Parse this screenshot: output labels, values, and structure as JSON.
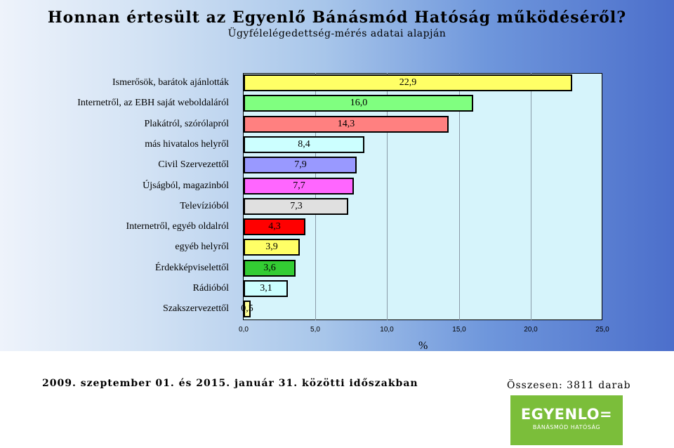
{
  "header": {
    "title": "Honnan értesült az Egyenlő Bánásmód Hatóság működéséről?",
    "subtitle": "Ügyfélelégedettség-mérés adatai alapján"
  },
  "chart_data": {
    "type": "bar",
    "orientation": "horizontal",
    "title": "Honnan értesült az Egyenlő Bánásmód Hatóság működéséről?",
    "subtitle": "Ügyfélelégedettség-mérés adatai alapján",
    "xlabel": "%",
    "ylabel": "",
    "xlim": [
      0,
      25
    ],
    "x_ticks": [
      "0,0",
      "5,0",
      "10,0",
      "15,0",
      "20,0",
      "25,0"
    ],
    "grid": true,
    "categories": [
      "Ismerősök, barátok ajánlották",
      "Internetről, az EBH saját weboldaláról",
      "Plakátról, szórólapról",
      "más hivatalos helyről",
      "Civil Szervezettől",
      "Újságból, magazinból",
      "Televízióból",
      "Internetről, egyéb oldalról",
      "egyéb helyről",
      "Érdekképviselettől",
      "Rádióból",
      "Szakszervezettől"
    ],
    "values": [
      22.9,
      16.0,
      14.3,
      8.4,
      7.9,
      7.7,
      7.3,
      4.3,
      3.9,
      3.6,
      3.1,
      0.5
    ],
    "value_labels": [
      "22,9",
      "16,0",
      "14,3",
      "8,4",
      "7,9",
      "7,7",
      "7,3",
      "4,3",
      "3,9",
      "3,6",
      "3,1",
      "0,5"
    ],
    "colors": [
      "#ffff66",
      "#80ff80",
      "#ff8080",
      "#ccffff",
      "#9999ff",
      "#ff66ff",
      "#e0e0e0",
      "#ff0000",
      "#ffff66",
      "#33cc33",
      "#ccffff",
      "#ffff99"
    ]
  },
  "footer": {
    "period": "2009. szeptember 01. és 2015. január 31. közötti időszakban",
    "total": "Összesen: 3811 darab"
  },
  "logo": {
    "main": "EGYENLO=",
    "sub": "BÁNÁSMÓD HATÓSÁG",
    "color": "#7bbe3a"
  }
}
